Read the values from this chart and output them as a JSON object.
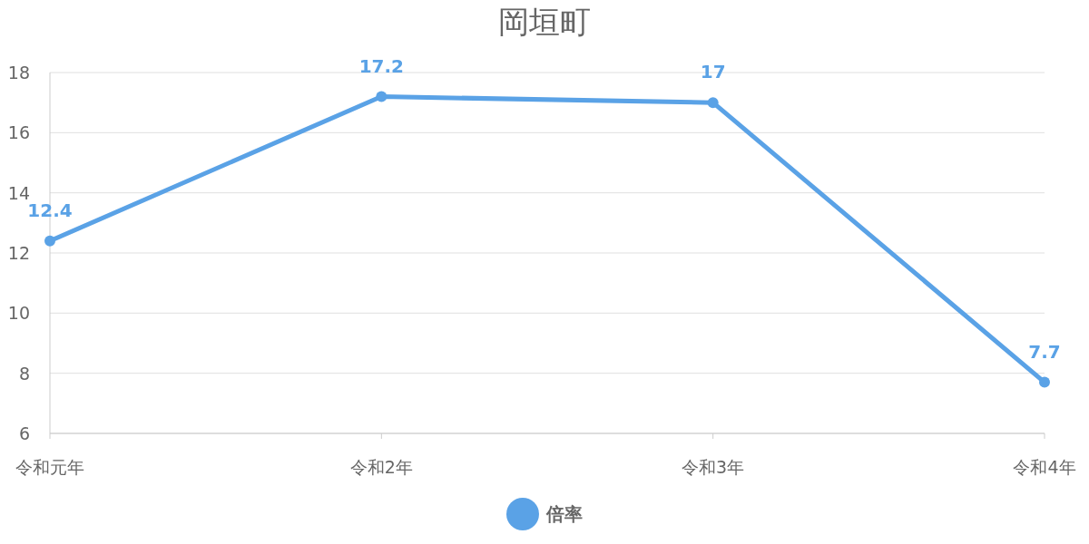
{
  "chart_data": {
    "type": "line",
    "title": "岡垣町",
    "categories": [
      "令和元年",
      "令和2年",
      "令和3年",
      "令和4年"
    ],
    "series": [
      {
        "name": "倍率",
        "color": "#5aa2e6",
        "values": [
          12.4,
          17.2,
          17,
          7.7
        ]
      }
    ],
    "ylim": [
      6,
      18
    ],
    "yticks": [
      6,
      8,
      10,
      12,
      14,
      16,
      18
    ],
    "grid": "y",
    "legend": "bottom",
    "marker": "circle",
    "line_style": "solid",
    "data_labels": true
  }
}
